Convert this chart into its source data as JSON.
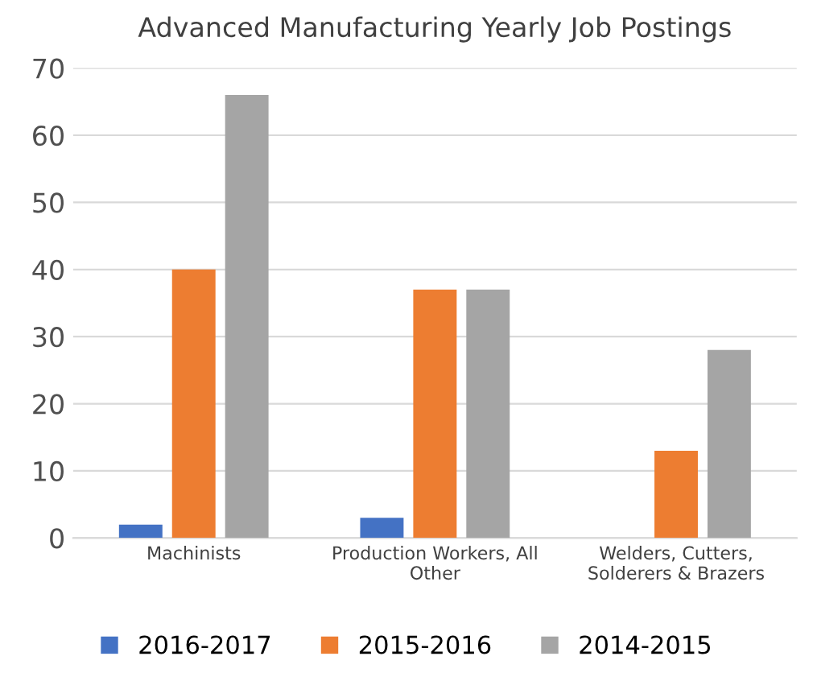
{
  "chart_data": {
    "type": "bar",
    "title": "Advanced Manufacturing Yearly Job Postings",
    "categories": [
      "Machinists",
      "Production Workers, All\nOther",
      "Welders, Cutters,\nSolderers & Brazers"
    ],
    "series": [
      {
        "name": "2016-2017",
        "color": "#4472c4",
        "values": [
          2,
          3,
          0
        ]
      },
      {
        "name": "2015-2016",
        "color": "#ed7d31",
        "values": [
          40,
          37,
          13
        ]
      },
      {
        "name": "2014-2015",
        "color": "#a5a5a5",
        "values": [
          66,
          37,
          28
        ]
      }
    ],
    "ylim": [
      0,
      70
    ],
    "yticks": [
      0,
      10,
      20,
      30,
      40,
      50,
      60,
      70
    ],
    "grid": "y",
    "legend": "bottom"
  }
}
